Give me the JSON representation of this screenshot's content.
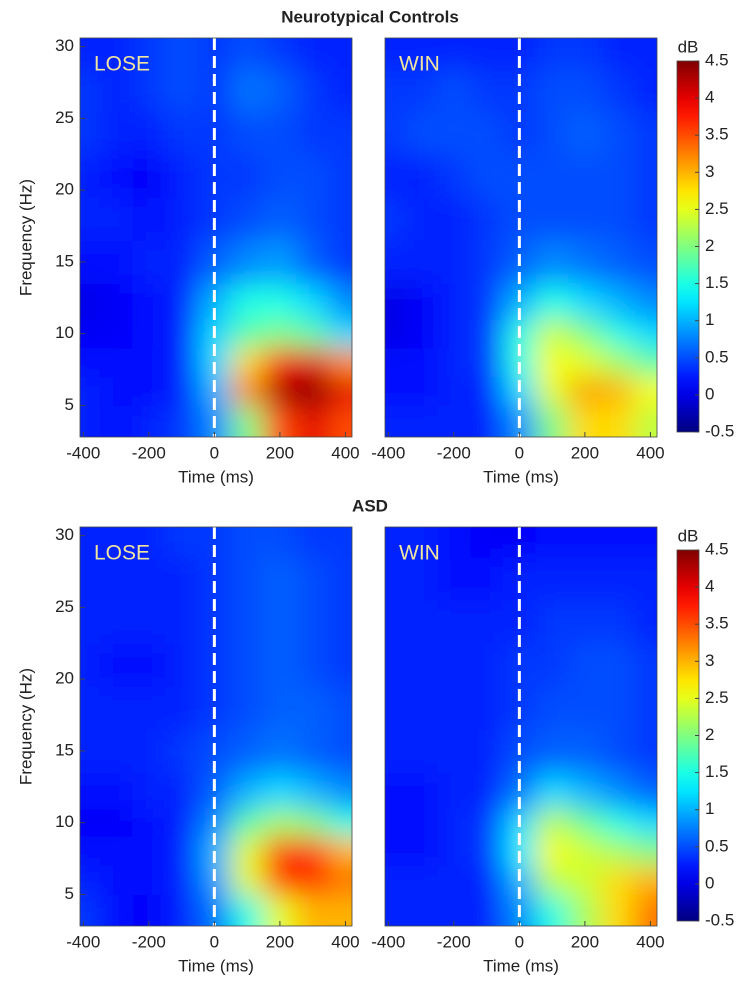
{
  "chart_data": [
    {
      "type": "heatmap",
      "title": "Neurotypical Controls",
      "label": "LOSE",
      "x": [
        -400,
        -300,
        -200,
        -100,
        0,
        100,
        200,
        300,
        400
      ],
      "y": [
        4,
        6,
        8,
        10,
        12,
        15,
        18,
        21,
        24,
        27,
        30
      ],
      "z": [
        [
          0.3,
          0.2,
          0.3,
          0.4,
          0.8,
          2.0,
          3.5,
          4.0,
          3.5
        ],
        [
          0.3,
          0.2,
          0.2,
          0.3,
          1.0,
          3.2,
          4.3,
          4.5,
          4.0
        ],
        [
          0.2,
          0.2,
          0.2,
          0.3,
          1.2,
          2.8,
          3.8,
          4.0,
          3.2
        ],
        [
          0.1,
          0.1,
          0.2,
          0.3,
          1.2,
          1.8,
          2.0,
          1.8,
          1.2
        ],
        [
          0.0,
          0.1,
          0.2,
          0.3,
          1.0,
          1.5,
          1.5,
          1.2,
          0.8
        ],
        [
          0.2,
          0.2,
          0.3,
          0.3,
          0.6,
          0.8,
          0.9,
          0.6,
          0.4
        ],
        [
          0.3,
          0.3,
          0.2,
          0.3,
          0.4,
          0.5,
          0.6,
          0.5,
          0.4
        ],
        [
          0.3,
          0.2,
          0.1,
          0.3,
          0.4,
          0.4,
          0.5,
          0.5,
          0.4
        ],
        [
          0.4,
          0.3,
          0.3,
          0.4,
          0.4,
          0.5,
          0.5,
          0.4,
          0.4
        ],
        [
          0.4,
          0.3,
          0.4,
          0.5,
          0.4,
          0.7,
          0.6,
          0.4,
          0.3
        ],
        [
          0.3,
          0.3,
          0.4,
          0.5,
          0.4,
          0.5,
          0.4,
          0.3,
          0.3
        ]
      ],
      "zlim": [
        -0.5,
        4.5
      ],
      "xlim": [
        -410,
        420
      ],
      "ylim": [
        2.8,
        30.6
      ],
      "xticks": [
        -400,
        -200,
        0,
        200,
        400
      ],
      "yticks": [
        5,
        10,
        15,
        20,
        25,
        30
      ],
      "xlabel": "Time (ms)",
      "ylabel": "Frequency (Hz)",
      "vline": 0
    },
    {
      "type": "heatmap",
      "label": "WIN",
      "x": [
        -400,
        -300,
        -200,
        -100,
        0,
        100,
        200,
        300,
        400
      ],
      "y": [
        4,
        6,
        8,
        10,
        12,
        15,
        18,
        21,
        24,
        27,
        30
      ],
      "z": [
        [
          0.3,
          0.3,
          0.3,
          0.3,
          0.8,
          2.0,
          2.8,
          2.8,
          2.3
        ],
        [
          0.2,
          0.2,
          0.3,
          0.3,
          1.2,
          2.5,
          3.1,
          3.0,
          2.6
        ],
        [
          0.2,
          0.2,
          0.3,
          0.4,
          1.5,
          2.6,
          2.5,
          2.2,
          1.8
        ],
        [
          0.0,
          0.1,
          0.3,
          0.4,
          1.5,
          2.4,
          2.0,
          1.5,
          1.2
        ],
        [
          0.0,
          0.1,
          0.3,
          0.4,
          1.0,
          1.5,
          1.2,
          1.0,
          0.8
        ],
        [
          0.3,
          0.3,
          0.3,
          0.4,
          0.6,
          0.8,
          0.7,
          0.6,
          0.5
        ],
        [
          0.4,
          0.3,
          0.3,
          0.4,
          0.5,
          0.5,
          0.5,
          0.5,
          0.4
        ],
        [
          0.3,
          0.3,
          0.4,
          0.5,
          0.5,
          0.5,
          0.5,
          0.5,
          0.4
        ],
        [
          0.4,
          0.5,
          0.5,
          0.5,
          0.4,
          0.5,
          0.6,
          0.5,
          0.4
        ],
        [
          0.4,
          0.4,
          0.5,
          0.4,
          0.4,
          0.5,
          0.5,
          0.4,
          0.3
        ],
        [
          0.3,
          0.3,
          0.3,
          0.3,
          0.3,
          0.4,
          0.4,
          0.3,
          0.3
        ]
      ],
      "zlim": [
        -0.5,
        4.5
      ],
      "xlim": [
        -410,
        420
      ],
      "ylim": [
        2.8,
        30.6
      ],
      "xticks": [
        -400,
        -200,
        0,
        200,
        400
      ],
      "xlabel": "Time (ms)",
      "vline": 0,
      "colorbar": {
        "label": "dB",
        "ticks": [
          -0.5,
          0,
          0.5,
          1,
          1.5,
          2,
          2.5,
          3,
          3.5,
          4,
          4.5
        ]
      }
    },
    {
      "type": "heatmap",
      "title": "ASD",
      "label": "LOSE",
      "x": [
        -400,
        -300,
        -200,
        -100,
        0,
        100,
        200,
        300,
        400
      ],
      "y": [
        4,
        6,
        8,
        10,
        12,
        15,
        18,
        21,
        24,
        27,
        30
      ],
      "z": [
        [
          0.4,
          0.2,
          0.1,
          0.3,
          0.7,
          1.5,
          2.5,
          3.0,
          3.0
        ],
        [
          0.3,
          0.2,
          0.2,
          0.3,
          0.9,
          2.5,
          3.6,
          3.7,
          3.3
        ],
        [
          0.2,
          0.2,
          0.2,
          0.3,
          1.0,
          2.5,
          3.6,
          3.6,
          3.0
        ],
        [
          0.1,
          0.1,
          0.2,
          0.3,
          0.8,
          1.8,
          2.2,
          2.0,
          1.5
        ],
        [
          0.2,
          0.2,
          0.3,
          0.3,
          0.6,
          1.0,
          1.2,
          1.0,
          0.8
        ],
        [
          0.3,
          0.3,
          0.3,
          0.4,
          0.5,
          0.6,
          0.7,
          0.6,
          0.5
        ],
        [
          0.3,
          0.3,
          0.3,
          0.3,
          0.4,
          0.5,
          0.6,
          0.6,
          0.5
        ],
        [
          0.3,
          0.2,
          0.2,
          0.3,
          0.4,
          0.5,
          0.6,
          0.5,
          0.4
        ],
        [
          0.3,
          0.3,
          0.3,
          0.3,
          0.4,
          0.5,
          0.6,
          0.5,
          0.4
        ],
        [
          0.3,
          0.3,
          0.3,
          0.3,
          0.4,
          0.5,
          0.6,
          0.5,
          0.4
        ],
        [
          0.3,
          0.3,
          0.3,
          0.4,
          0.4,
          0.5,
          0.5,
          0.4,
          0.4
        ]
      ],
      "zlim": [
        -0.5,
        4.5
      ],
      "xlim": [
        -410,
        420
      ],
      "ylim": [
        2.8,
        30.6
      ],
      "xticks": [
        -400,
        -200,
        0,
        200,
        400
      ],
      "yticks": [
        5,
        10,
        15,
        20,
        25,
        30
      ],
      "xlabel": "Time (ms)",
      "ylabel": "Frequency (Hz)",
      "vline": 0
    },
    {
      "type": "heatmap",
      "label": "WIN",
      "x": [
        -400,
        -300,
        -200,
        -100,
        0,
        100,
        200,
        300,
        400
      ],
      "y": [
        4,
        6,
        8,
        10,
        12,
        15,
        18,
        21,
        24,
        27,
        30
      ],
      "z": [
        [
          0.3,
          0.3,
          0.3,
          0.3,
          0.8,
          1.5,
          2.2,
          2.8,
          3.3
        ],
        [
          0.3,
          0.3,
          0.3,
          0.3,
          1.0,
          2.3,
          2.4,
          2.8,
          3.0
        ],
        [
          0.2,
          0.2,
          0.3,
          0.4,
          1.3,
          2.6,
          2.4,
          2.2,
          2.0
        ],
        [
          0.2,
          0.2,
          0.3,
          0.4,
          1.2,
          2.3,
          1.9,
          1.5,
          1.2
        ],
        [
          0.2,
          0.2,
          0.3,
          0.3,
          0.7,
          1.2,
          1.0,
          0.8,
          0.6
        ],
        [
          0.3,
          0.3,
          0.3,
          0.3,
          0.5,
          0.6,
          0.6,
          0.5,
          0.4
        ],
        [
          0.3,
          0.3,
          0.3,
          0.3,
          0.4,
          0.5,
          0.5,
          0.5,
          0.4
        ],
        [
          0.3,
          0.3,
          0.3,
          0.3,
          0.4,
          0.4,
          0.5,
          0.5,
          0.4
        ],
        [
          0.3,
          0.3,
          0.3,
          0.3,
          0.3,
          0.4,
          0.4,
          0.4,
          0.3
        ],
        [
          0.3,
          0.3,
          0.2,
          0.2,
          0.3,
          0.3,
          0.3,
          0.3,
          0.3
        ],
        [
          0.3,
          0.3,
          0.2,
          0.1,
          0.1,
          0.2,
          0.2,
          0.2,
          0.2
        ]
      ],
      "zlim": [
        -0.5,
        4.5
      ],
      "xlim": [
        -410,
        420
      ],
      "ylim": [
        2.8,
        30.6
      ],
      "xticks": [
        -400,
        -200,
        0,
        200,
        400
      ],
      "xlabel": "Time (ms)",
      "vline": 0,
      "colorbar": {
        "label": "dB",
        "ticks": [
          -0.5,
          0,
          0.5,
          1,
          1.5,
          2,
          2.5,
          3,
          3.5,
          4,
          4.5
        ]
      }
    }
  ]
}
